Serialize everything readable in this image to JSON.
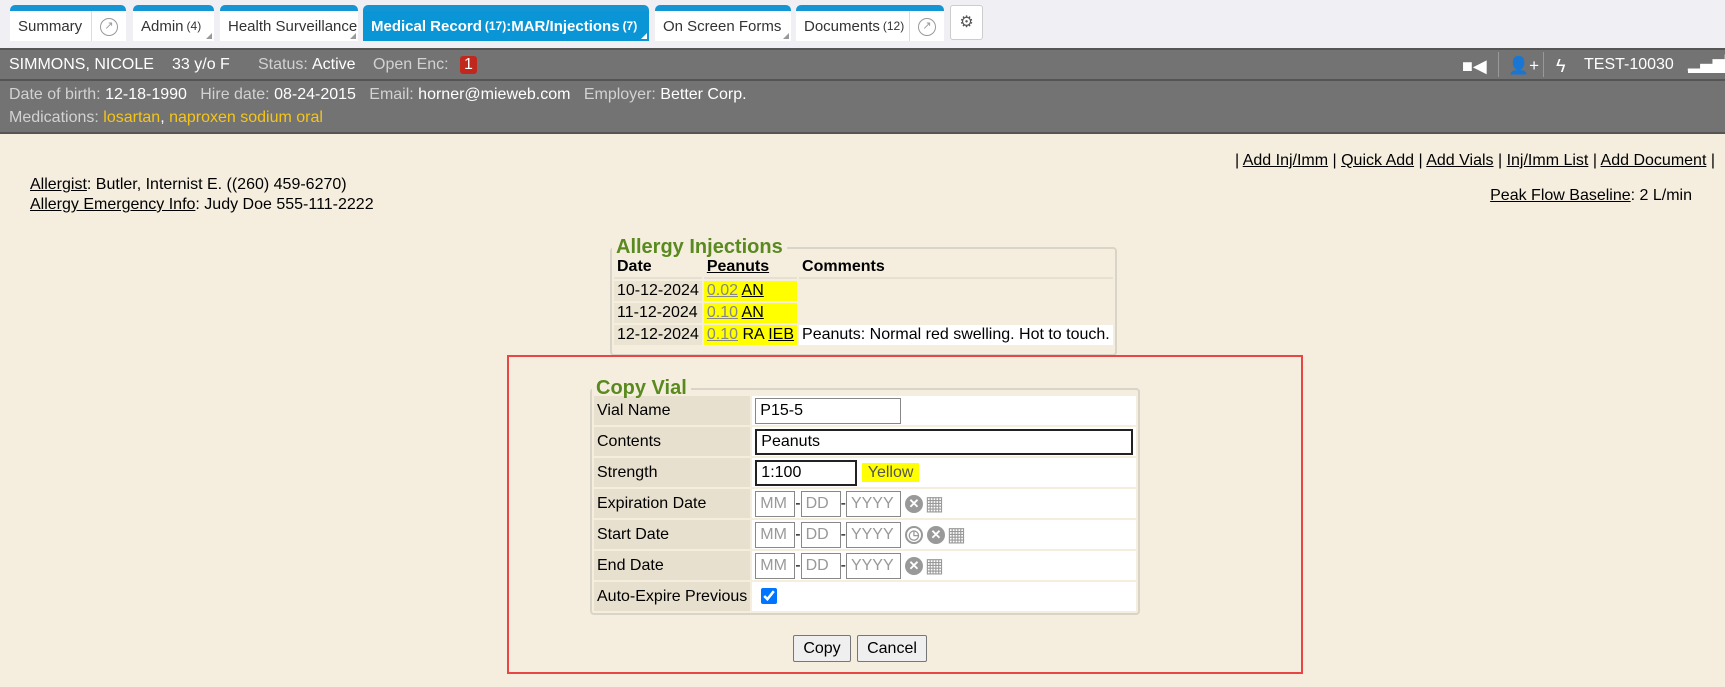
{
  "tabs": [
    {
      "label": "Summary",
      "count": ""
    },
    {
      "label": "Admin",
      "count": "(4)"
    },
    {
      "label": "Health Surveillance",
      "count": ""
    },
    {
      "label": "Medical Record",
      "count": "(17)",
      "sub": ":MAR/Injections",
      "sub_count": "(7)"
    },
    {
      "label": "On Screen Forms",
      "count": ""
    },
    {
      "label": "Documents",
      "count": "(12)"
    }
  ],
  "patient": {
    "name": "SIMMONS, NICOLE",
    "age_sex": "33 y/o F",
    "status_label": "Status:",
    "status": "Active",
    "open_enc_label": "Open Enc:",
    "open_enc": "1",
    "id": "TEST-10030",
    "dob_label": "Date of birth:",
    "dob": "12-18-1990",
    "hire_label": "Hire date:",
    "hire": "08-24-2015",
    "email_label": "Email:",
    "email": "horner@mieweb.com",
    "employer_label": "Employer:",
    "employer": "Better Corp.",
    "med_label": "Medications:",
    "meds": [
      "losartan",
      "naproxen sodium oral"
    ]
  },
  "info": {
    "allergist_label": "Allergist",
    "allergist": ": Butler, Internist E. ((260) 459-6270)",
    "emergency_label": "Allergy Emergency Info",
    "emergency": ": Judy Doe 555-111-2222",
    "peak_label": "Peak Flow Baseline",
    "peak": ": 2 L/min"
  },
  "links": [
    "Add Inj/Imm",
    "Quick Add",
    "Add Vials",
    "Inj/Imm List",
    "Add Document"
  ],
  "injections": {
    "title": "Allergy Injections",
    "headers": [
      "Date",
      "Peanuts",
      "Comments"
    ],
    "rows": [
      {
        "date": "10-12-2024",
        "dose": "0.02",
        "site": "AN",
        "by": "",
        "comment": ""
      },
      {
        "date": "11-12-2024",
        "dose": "0.10",
        "site": "AN",
        "by": "",
        "comment": ""
      },
      {
        "date": "12-12-2024",
        "dose": "0.10",
        "site": "RA",
        "by": "IEB",
        "comment": "Peanuts: Normal red swelling. Hot to touch."
      }
    ]
  },
  "copy_vial": {
    "title": "Copy Vial",
    "vial_name_label": "Vial Name",
    "vial_name": "P15-5",
    "contents_label": "Contents",
    "contents": "Peanuts",
    "strength_label": "Strength",
    "strength": "1:100",
    "strength_color": "Yellow",
    "exp_label": "Expiration Date",
    "start_label": "Start Date",
    "end_label": "End Date",
    "mm": "MM",
    "dd": "DD",
    "yyyy": "YYYY",
    "auto_label": "Auto-Expire Previous",
    "auto_checked": true,
    "copy": "Copy",
    "cancel": "Cancel"
  },
  "colors": {
    "accent": "#0a95d6",
    "legend": "#5a8a1f",
    "highlight": "#ffff00",
    "alert": "#e84545"
  }
}
